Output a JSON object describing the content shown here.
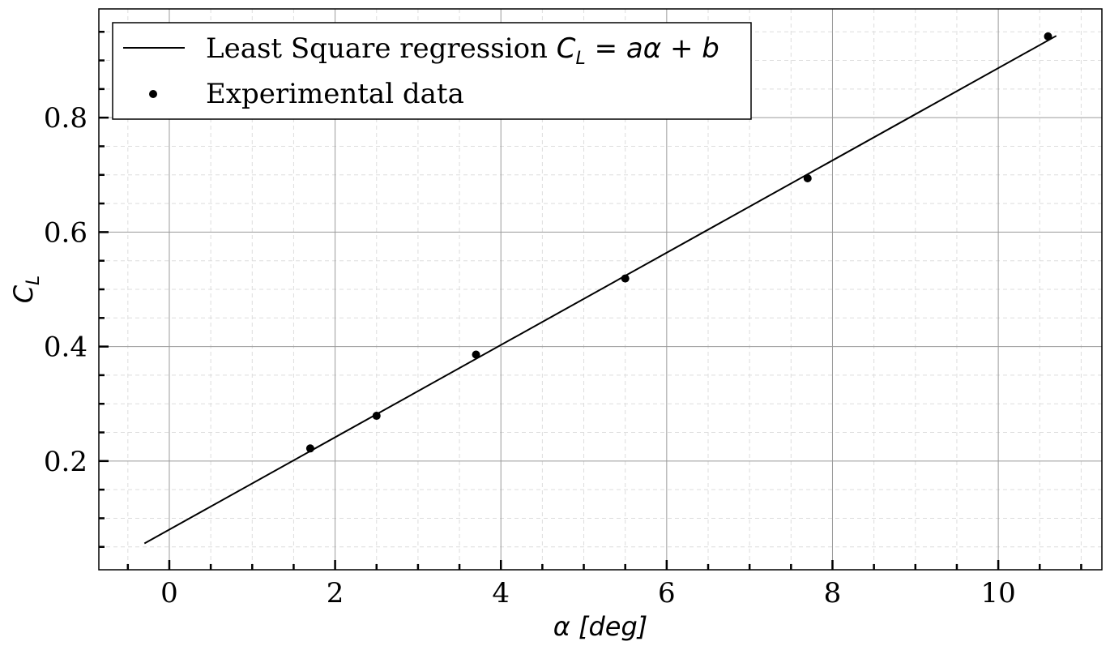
{
  "chart_data": {
    "type": "scatter",
    "title": "",
    "xlabel": "α  [deg]",
    "ylabel": "C_L",
    "xlim": [
      -0.85,
      11.25
    ],
    "ylim": [
      0.01,
      0.99
    ],
    "x_ticks": [
      0,
      2,
      4,
      6,
      8,
      10
    ],
    "y_ticks": [
      0.2,
      0.4,
      0.6,
      0.8
    ],
    "x_tick_labels": [
      "0",
      "2",
      "4",
      "6",
      "8",
      "10"
    ],
    "y_tick_labels": [
      "0.2",
      "0.4",
      "0.6",
      "0.8"
    ],
    "grid": "major and minor",
    "legend_position": "top-left",
    "series": [
      {
        "name": "Least Square regression C_L = aα + b",
        "kind": "line",
        "color": "#000000",
        "x": [
          -0.3,
          10.7
        ],
        "y": [
          0.056,
          0.943
        ]
      },
      {
        "name": "Experimental data",
        "kind": "scatter",
        "color": "#000000",
        "x": [
          1.7,
          2.5,
          3.7,
          5.5,
          7.7,
          10.6
        ],
        "y": [
          0.222,
          0.279,
          0.386,
          0.519,
          0.694,
          0.942
        ]
      }
    ],
    "legend": {
      "line_text_plain": "Least Square regression ",
      "line_text_math_1": "C",
      "line_text_math_sub": "L",
      "line_text_math_2": " = aα + b",
      "scatter_text": "Experimental data"
    }
  }
}
